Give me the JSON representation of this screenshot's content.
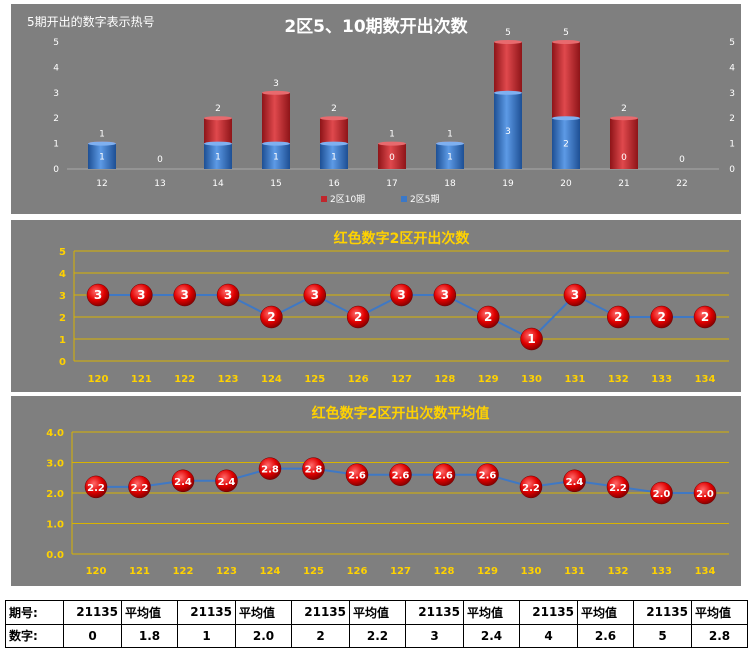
{
  "chart_data": [
    {
      "type": "bar",
      "title": "2区5、10期数开出次数",
      "subtitle": "5期开出的数字表示热号",
      "categories": [
        "12",
        "13",
        "14",
        "15",
        "16",
        "17",
        "18",
        "19",
        "20",
        "21",
        "22"
      ],
      "series": [
        {
          "name": "2区10期",
          "color": "#c0262c",
          "values": [
            1,
            0,
            2,
            3,
            2,
            1,
            1,
            5,
            5,
            2,
            0
          ]
        },
        {
          "name": "2区5期",
          "color": "#3a78c8",
          "values": [
            1,
            0,
            1,
            1,
            1,
            0,
            1,
            3,
            2,
            0,
            0
          ]
        }
      ],
      "ylim": [
        0,
        5
      ],
      "yticks": [
        "0",
        "1",
        "2",
        "3",
        "4",
        "5"
      ],
      "legend": "bottom",
      "grid": false
    },
    {
      "type": "line",
      "title": "红色数字2区开出次数",
      "categories": [
        "120",
        "121",
        "122",
        "123",
        "124",
        "125",
        "126",
        "127",
        "128",
        "129",
        "130",
        "131",
        "132",
        "133",
        "134"
      ],
      "values": [
        3,
        3,
        3,
        3,
        2,
        3,
        2,
        3,
        3,
        2,
        1,
        3,
        2,
        2,
        2
      ],
      "labels": [
        "3",
        "3",
        "3",
        "3",
        "2",
        "3",
        "2",
        "3",
        "3",
        "2",
        "1",
        "3",
        "2",
        "2",
        "2"
      ],
      "ylim": [
        0,
        5
      ],
      "yticks": [
        "0",
        "1",
        "2",
        "3",
        "4",
        "5"
      ],
      "grid": true
    },
    {
      "type": "line",
      "title": "红色数字2区开出次数平均值",
      "categories": [
        "120",
        "121",
        "122",
        "123",
        "124",
        "125",
        "126",
        "127",
        "128",
        "129",
        "130",
        "131",
        "132",
        "133",
        "134"
      ],
      "values": [
        2.2,
        2.2,
        2.4,
        2.4,
        2.8,
        2.8,
        2.6,
        2.6,
        2.6,
        2.6,
        2.2,
        2.4,
        2.2,
        2.0,
        2.0
      ],
      "labels": [
        "2.2",
        "2.2",
        "2.4",
        "2.4",
        "2.8",
        "2.8",
        "2.6",
        "2.6",
        "2.6",
        "2.6",
        "2.2",
        "2.4",
        "2.2",
        "2.0",
        "2.0"
      ],
      "ylim": [
        0,
        4
      ],
      "yticks": [
        "0.0",
        "1.0",
        "2.0",
        "3.0",
        "4.0"
      ],
      "grid": true
    },
    {
      "type": "table",
      "row_header_period": "期号:",
      "row_header_digit": "数字:",
      "cells": [
        {
          "period": "21135",
          "avg_label": "平均值",
          "digit": "0",
          "avg": "1.8"
        },
        {
          "period": "21135",
          "avg_label": "平均值",
          "digit": "1",
          "avg": "2.0"
        },
        {
          "period": "21135",
          "avg_label": "平均值",
          "digit": "2",
          "avg": "2.2"
        },
        {
          "period": "21135",
          "avg_label": "平均值",
          "digit": "3",
          "avg": "2.4"
        },
        {
          "period": "21135",
          "avg_label": "平均值",
          "digit": "4",
          "avg": "2.6"
        },
        {
          "period": "21135",
          "avg_label": "平均值",
          "digit": "5",
          "avg": "2.8"
        }
      ]
    }
  ]
}
